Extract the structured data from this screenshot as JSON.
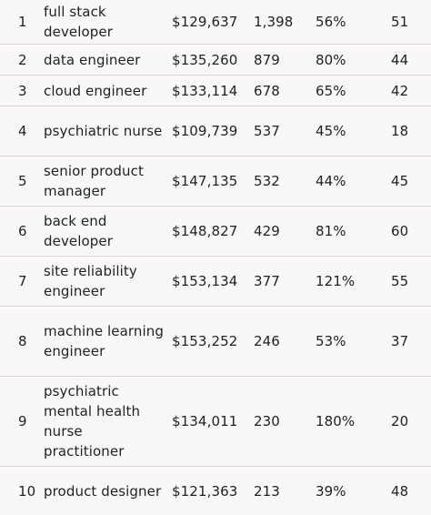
{
  "table": {
    "rows": [
      {
        "rank": "1",
        "title": "full stack developer",
        "salary": "$129,637",
        "postings": "1,398",
        "growth": "56%",
        "remote": "51"
      },
      {
        "rank": "2",
        "title": "data engineer",
        "salary": "$135,260",
        "postings": "879",
        "growth": "80%",
        "remote": "44"
      },
      {
        "rank": "3",
        "title": "cloud engineer",
        "salary": "$133,114",
        "postings": "678",
        "growth": "65%",
        "remote": "42"
      },
      {
        "rank": "4",
        "title": "psychiatric nurse",
        "salary": "$109,739",
        "postings": "537",
        "growth": "45%",
        "remote": "18"
      },
      {
        "rank": "5",
        "title": "senior product manager",
        "salary": "$147,135",
        "postings": "532",
        "growth": "44%",
        "remote": "45"
      },
      {
        "rank": "6",
        "title": "back end developer",
        "salary": "$148,827",
        "postings": "429",
        "growth": "81%",
        "remote": "60"
      },
      {
        "rank": "7",
        "title": "site reliability engineer",
        "salary": "$153,134",
        "postings": "377",
        "growth": "121%",
        "remote": "55"
      },
      {
        "rank": "8",
        "title": "machine learning engineer",
        "salary": "$153,252",
        "postings": "246",
        "growth": "53%",
        "remote": "37"
      },
      {
        "rank": "9",
        "title": "psychiatric mental health nurse practitioner",
        "salary": "$134,011",
        "postings": "230",
        "growth": "180%",
        "remote": "20"
      },
      {
        "rank": "10",
        "title": "product designer",
        "salary": "$121,363",
        "postings": "213",
        "growth": "39%",
        "remote": "48"
      }
    ]
  },
  "colors": {
    "background": "#faf7f7",
    "divider": "#dcd7d7",
    "text": "#222222"
  }
}
